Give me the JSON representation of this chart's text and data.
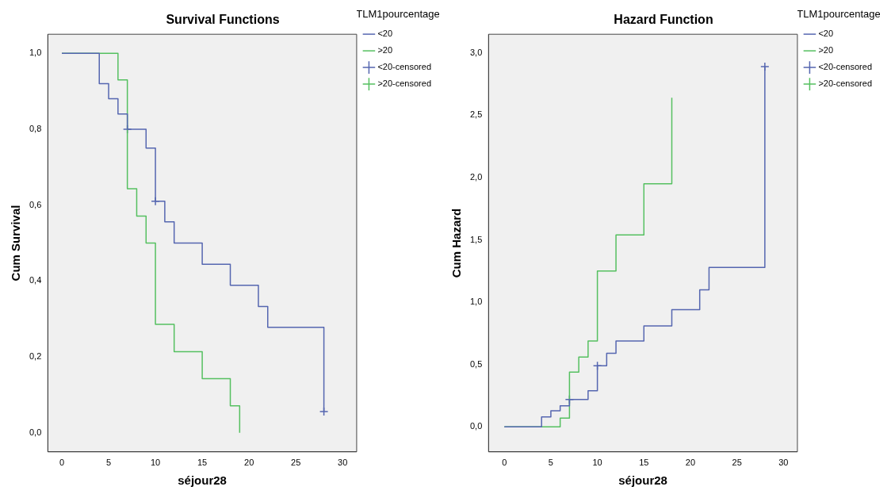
{
  "chart_data": [
    {
      "type": "step",
      "title": "Survival Functions",
      "xlabel": "séjour28",
      "ylabel": "Cum Survival",
      "legend_title": "TLM1pourcentage",
      "legend": "top right",
      "grid": false,
      "xlim": [
        -1.5,
        31.5
      ],
      "xticks": [
        0,
        5,
        10,
        15,
        20,
        25,
        30
      ],
      "ylim": [
        -0.05,
        1.05
      ],
      "yticks": [
        {
          "value": 0,
          "label": "0,0"
        },
        {
          "value": 0.2,
          "label": "0,2"
        },
        {
          "value": 0.4,
          "label": "0,4"
        },
        {
          "value": 0.6,
          "label": "0,6"
        },
        {
          "value": 0.8,
          "label": "0,8"
        },
        {
          "value": 1,
          "label": "1,0"
        }
      ],
      "series": [
        {
          "name": "<20",
          "color": "#5566b0",
          "type": "step",
          "marker": "none",
          "x": [
            0,
            4,
            5,
            6,
            7,
            9,
            10,
            11,
            12,
            15,
            18,
            21,
            22,
            28
          ],
          "values": [
            1,
            0.92,
            0.88,
            0.84,
            0.8,
            0.75,
            0.61,
            0.556,
            0.5,
            0.444,
            0.389,
            0.333,
            0.278,
            0.056
          ]
        },
        {
          "name": ">20",
          "color": "#55c060",
          "type": "step",
          "marker": "none",
          "x": [
            0,
            6,
            7,
            8,
            9,
            10,
            12,
            15,
            18,
            19
          ],
          "values": [
            1,
            0.93,
            0.643,
            0.571,
            0.5,
            0.286,
            0.214,
            0.143,
            0.071,
            0
          ]
        },
        {
          "name": "<20-censored",
          "color": "#5566b0",
          "type": "scatter",
          "marker": "cross",
          "x": [
            7,
            10,
            28
          ],
          "values": [
            0.8,
            0.61,
            0.056
          ]
        },
        {
          "name": ">20-censored",
          "color": "#55c060",
          "type": "scatter",
          "marker": "cross"
        }
      ]
    },
    {
      "type": "step",
      "title": "Hazard Function",
      "xlabel": "séjour28",
      "ylabel": "Cum Hazard",
      "legend_title": "TLM1pourcentage",
      "legend": "top right",
      "grid": false,
      "xlim": [
        -1.7,
        31.5
      ],
      "xticks": [
        0,
        5,
        10,
        15,
        20,
        25,
        30
      ],
      "ylim": [
        -0.2,
        3.15
      ],
      "yticks": [
        {
          "value": 0,
          "label": "0,0"
        },
        {
          "value": 0.5,
          "label": "0,5"
        },
        {
          "value": 1,
          "label": "1,0"
        },
        {
          "value": 1.5,
          "label": "1,5"
        },
        {
          "value": 2,
          "label": "2,0"
        },
        {
          "value": 2.5,
          "label": "2,5"
        },
        {
          "value": 3,
          "label": "3,0"
        }
      ],
      "series": [
        {
          "name": "<20",
          "color": "#5566b0",
          "type": "step",
          "marker": "none",
          "x": [
            0,
            4,
            5,
            6,
            7,
            9,
            10,
            11,
            12,
            15,
            18,
            21,
            22,
            28
          ],
          "values": [
            0,
            0.08,
            0.13,
            0.17,
            0.22,
            0.29,
            0.49,
            0.59,
            0.69,
            0.81,
            0.94,
            1.1,
            1.28,
            2.89
          ]
        },
        {
          "name": ">20",
          "color": "#55c060",
          "type": "step",
          "marker": "none",
          "x": [
            0,
            6,
            7,
            8,
            9,
            10,
            12,
            15,
            18
          ],
          "values": [
            0,
            0.07,
            0.44,
            0.56,
            0.69,
            1.25,
            1.54,
            1.95,
            2.64
          ]
        },
        {
          "name": "<20-censored",
          "color": "#5566b0",
          "type": "scatter",
          "marker": "cross",
          "x": [
            7,
            10,
            28
          ],
          "values": [
            0.22,
            0.49,
            2.89
          ]
        },
        {
          "name": ">20-censored",
          "color": "#55c060",
          "type": "scatter",
          "marker": "cross"
        }
      ]
    }
  ]
}
